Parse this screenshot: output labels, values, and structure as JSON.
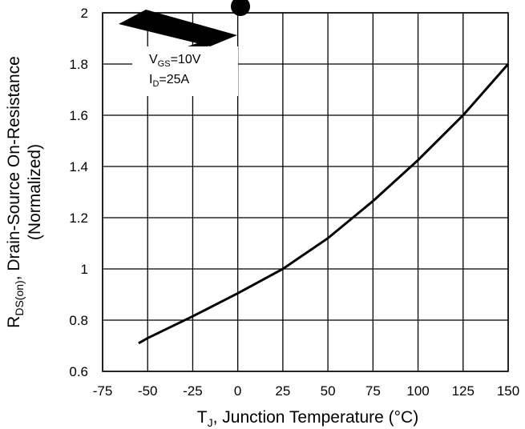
{
  "chart_data": {
    "type": "line",
    "title": "",
    "xlabel": {
      "main": "T",
      "sub": "J",
      "rest": ", Junction Temperature (°C)"
    },
    "ylabel": {
      "line1_main": "R",
      "line1_sub": "DS(on)",
      "line1_rest": ", Drain-Source On-Resistance",
      "line2": "(Normalized)"
    },
    "xlim": [
      -75,
      150
    ],
    "ylim": [
      0.6,
      2.0
    ],
    "grid": true,
    "x_ticks": [
      -75,
      -50,
      -25,
      0,
      25,
      50,
      75,
      100,
      125,
      150
    ],
    "x_tick_labels": [
      "-75",
      "-50",
      "-25",
      "0",
      "25",
      "50",
      "75",
      "100",
      "125",
      "150"
    ],
    "y_ticks": [
      0.6,
      0.8,
      1.0,
      1.2,
      1.4,
      1.6,
      1.8,
      2.0
    ],
    "y_tick_labels": [
      "0.6",
      "0.8",
      "1",
      "1.2",
      "1.4",
      "1.6",
      "1.8",
      "2"
    ],
    "annotation": {
      "line1_main": "V",
      "line1_sub": "GS",
      "line1_rest": "=10V",
      "line2_main": "I",
      "line2_sub": "D",
      "line2_rest": "=25A"
    },
    "series": [
      {
        "x": [
          -55,
          -50,
          -25,
          0,
          25,
          50,
          75,
          100,
          125,
          150
        ],
        "y": [
          0.71,
          0.73,
          0.815,
          0.905,
          1.0,
          1.12,
          1.265,
          1.425,
          1.6,
          1.8
        ]
      }
    ]
  }
}
